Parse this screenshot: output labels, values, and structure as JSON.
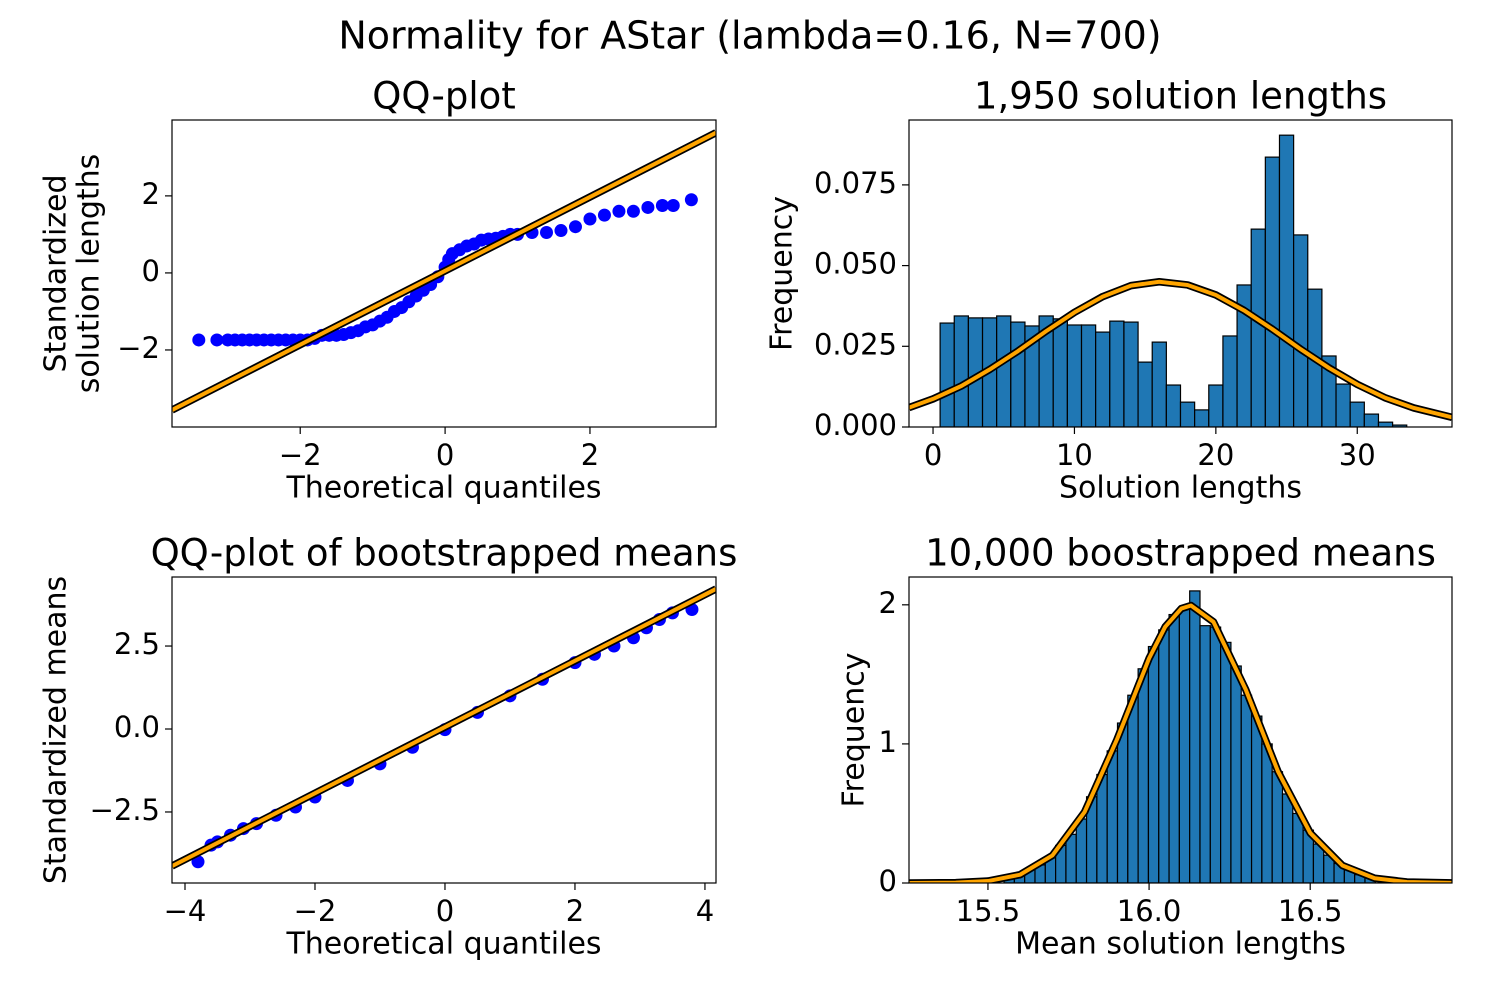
{
  "title": "Normality for AStar (lambda=0.16, N=700)",
  "chart_data": [
    {
      "type": "scatter",
      "title": "QQ-plot",
      "xlabel": "Theoretical quantiles",
      "ylabel": [
        "Standardized",
        "solution lengths"
      ],
      "xlim": [
        -3.77,
        3.74
      ],
      "ylim": [
        -4.0,
        3.97
      ],
      "xticks": [
        {
          "value": -2,
          "label": "−2"
        },
        0,
        2
      ],
      "yticks": [
        {
          "value": -2,
          "label": "−2"
        },
        0,
        2
      ],
      "series": [
        {
          "type": "scatter",
          "color": "#0000ff",
          "x": [
            -3.4,
            -3.15,
            -3.0,
            -2.9,
            -2.8,
            -2.7,
            -2.6,
            -2.5,
            -2.4,
            -2.3,
            -2.2,
            -2.1,
            -2.0,
            -1.9,
            -1.8,
            -1.7,
            -1.6,
            -1.5,
            -1.4,
            -1.3,
            -1.2,
            -1.1,
            -1.0,
            -0.9,
            -0.8,
            -0.7,
            -0.6,
            -0.5,
            -0.4,
            -0.3,
            -0.2,
            -0.1,
            0.0,
            0.05,
            0.1,
            0.2,
            0.3,
            0.4,
            0.5,
            0.6,
            0.7,
            0.8,
            0.9,
            1.0,
            1.2,
            1.4,
            1.6,
            1.8,
            2.0,
            2.2,
            2.4,
            2.6,
            2.8,
            3.0,
            3.15,
            3.4
          ],
          "values": [
            -1.74,
            -1.74,
            -1.74,
            -1.74,
            -1.74,
            -1.74,
            -1.74,
            -1.74,
            -1.74,
            -1.74,
            -1.74,
            -1.74,
            -1.74,
            -1.74,
            -1.7,
            -1.62,
            -1.62,
            -1.62,
            -1.6,
            -1.55,
            -1.5,
            -1.4,
            -1.35,
            -1.25,
            -1.15,
            -1.0,
            -0.9,
            -0.75,
            -0.6,
            -0.45,
            -0.3,
            -0.1,
            0.15,
            0.35,
            0.5,
            0.6,
            0.7,
            0.75,
            0.85,
            0.88,
            0.9,
            0.95,
            1.0,
            1.0,
            1.05,
            1.05,
            1.1,
            1.2,
            1.4,
            1.5,
            1.6,
            1.6,
            1.7,
            1.75,
            1.75,
            1.9
          ]
        },
        {
          "type": "line",
          "color": "#ffa500",
          "edgecolor": "#000000",
          "x": [
            -3.77,
            3.74
          ],
          "values": [
            -3.56,
            3.64
          ]
        }
      ]
    },
    {
      "type": "histogram",
      "title": "1,950 solution lengths",
      "xlabel": "Solution lengths",
      "ylabel": [
        "Frequency"
      ],
      "xlim": [
        -1.7,
        36.7
      ],
      "ylim": [
        0,
        0.0951
      ],
      "xticks": [
        0,
        10,
        20,
        30
      ],
      "yticks": [
        {
          "value": 0,
          "label": "0.000"
        },
        0.025,
        {
          "value": 0.05,
          "label": "0.050"
        },
        0.075
      ],
      "color": "#1f77b4",
      "edgecolor": "#000000",
      "bins": [
        0.5,
        1.5,
        2.5,
        3.5,
        4.5,
        5.5,
        6.5,
        7.5,
        8.5,
        9.5,
        10.5,
        11.5,
        12.5,
        13.5,
        14.5,
        15.5,
        16.5,
        17.5,
        18.5,
        19.5,
        20.5,
        21.5,
        22.5,
        23.5,
        24.5,
        25.5,
        26.5,
        27.5,
        28.5,
        29.5,
        30.5,
        31.5,
        32.5,
        33.5
      ],
      "values": [
        0.0322,
        0.0344,
        0.0338,
        0.0338,
        0.0344,
        0.0325,
        0.0313,
        0.0344,
        0.0335,
        0.0316,
        0.0316,
        0.0294,
        0.0328,
        0.0325,
        0.0201,
        0.0263,
        0.013,
        0.0077,
        0.0053,
        0.013,
        0.0282,
        0.044,
        0.0613,
        0.0836,
        0.0904,
        0.0595,
        0.0427,
        0.022,
        0.0133,
        0.0077,
        0.004,
        0.0015,
        0.0006
      ],
      "series": [
        {
          "type": "line",
          "color": "#ffa500",
          "edgecolor": "#000000",
          "x": [
            -1.7,
            0,
            2,
            4,
            6,
            8,
            10,
            12,
            14,
            16,
            18,
            20,
            22,
            24,
            26,
            28,
            30,
            32,
            34,
            36.7
          ],
          "values": [
            0.006,
            0.0087,
            0.0127,
            0.0178,
            0.0235,
            0.0297,
            0.0355,
            0.0404,
            0.0438,
            0.045,
            0.044,
            0.0409,
            0.0361,
            0.0303,
            0.0241,
            0.0183,
            0.0132,
            0.009,
            0.0059,
            0.003
          ]
        }
      ]
    },
    {
      "type": "scatter",
      "title": "QQ-plot of bootstrapped means",
      "xlabel": "Theoretical quantiles",
      "ylabel": [
        "Standardized means"
      ],
      "xlim": [
        -4.2,
        4.17
      ],
      "ylim": [
        -4.64,
        4.58
      ],
      "xticks": [
        {
          "value": -4,
          "label": "−4"
        },
        {
          "value": -2,
          "label": "−2"
        },
        0,
        2,
        4
      ],
      "yticks": [
        {
          "value": -2.5,
          "label": "−2.5"
        },
        {
          "value": 0,
          "label": "0.0"
        },
        2.5
      ],
      "series": [
        {
          "type": "scatter",
          "color": "#0000ff",
          "x": [
            -3.8,
            -3.6,
            -3.5,
            -3.3,
            -3.1,
            -2.9,
            -2.6,
            -2.3,
            -2.0,
            -1.5,
            -1.0,
            -0.5,
            0,
            0.5,
            1.0,
            1.5,
            2.0,
            2.3,
            2.6,
            2.9,
            3.1,
            3.3,
            3.5,
            3.8
          ],
          "values": [
            -4.0,
            -3.5,
            -3.4,
            -3.2,
            -3.0,
            -2.85,
            -2.6,
            -2.35,
            -2.05,
            -1.55,
            -1.05,
            -0.55,
            -0.02,
            0.5,
            1.0,
            1.5,
            2.0,
            2.25,
            2.5,
            2.75,
            3.05,
            3.3,
            3.5,
            3.6
          ]
        },
        {
          "type": "line",
          "color": "#ffa500",
          "edgecolor": "#000000",
          "x": [
            -4.2,
            4.17
          ],
          "values": [
            -4.13,
            4.22
          ]
        }
      ]
    },
    {
      "type": "histogram",
      "title": "10,000 boostrapped means",
      "xlabel": "Mean solution lengths",
      "ylabel": [
        "Frequency"
      ],
      "xlim": [
        15.255,
        16.94
      ],
      "ylim": [
        0,
        2.2
      ],
      "xticks": [
        15.5,
        {
          "value": 16,
          "label": "16.0"
        },
        16.5
      ],
      "yticks": [
        0,
        1,
        2
      ],
      "color": "#1f77b4",
      "edgecolor": "#000000",
      "bins": [
        15.55,
        15.582,
        15.614,
        15.646,
        15.678,
        15.71,
        15.742,
        15.774,
        15.806,
        15.838,
        15.87,
        15.902,
        15.934,
        15.966,
        15.998,
        16.03,
        16.062,
        16.094,
        16.126,
        16.158,
        16.19,
        16.222,
        16.254,
        16.286,
        16.318,
        16.35,
        16.382,
        16.414,
        16.446,
        16.478,
        16.51,
        16.542,
        16.574,
        16.606,
        16.638,
        16.67,
        16.702
      ],
      "values": [
        0.04,
        0.06,
        0.1,
        0.13,
        0.18,
        0.27,
        0.35,
        0.46,
        0.62,
        0.78,
        0.95,
        1.15,
        1.35,
        1.54,
        1.7,
        1.82,
        1.93,
        1.97,
        2.1,
        1.85,
        1.84,
        1.73,
        1.56,
        1.35,
        1.2,
        1.0,
        0.8,
        0.64,
        0.5,
        0.38,
        0.28,
        0.2,
        0.14,
        0.1,
        0.06,
        0.04
      ],
      "series": [
        {
          "type": "line",
          "color": "#ffa500",
          "edgecolor": "#000000",
          "x": [
            15.255,
            15.4,
            15.5,
            15.6,
            15.7,
            15.8,
            15.9,
            16.0,
            16.05,
            16.1,
            16.13,
            16.2,
            16.3,
            16.4,
            16.5,
            16.6,
            16.7,
            16.8,
            16.94
          ],
          "values": [
            0.0001,
            0.0026,
            0.014,
            0.06,
            0.198,
            0.511,
            1.03,
            1.615,
            1.842,
            1.973,
            1.995,
            1.877,
            1.39,
            0.802,
            0.36,
            0.126,
            0.034,
            0.0073,
            0.0005
          ]
        }
      ]
    }
  ]
}
